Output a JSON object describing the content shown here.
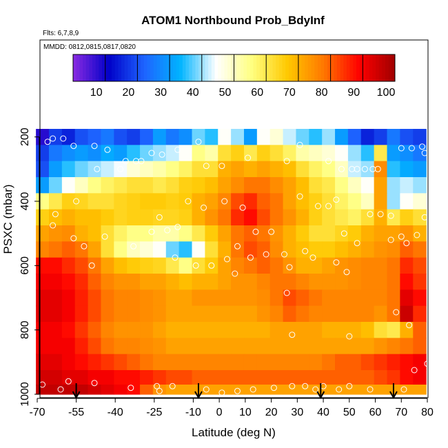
{
  "chart_data": {
    "type": "heatmap",
    "title": "ATOM1 Northbound Prob_BdyInf",
    "flights_note": "Flts: 6,7,8,9",
    "dates_note": "MMDD: 0812,0815,0817,0820",
    "xlabel": "Latitude (deg N)",
    "ylabel": "PSXC (mbar)",
    "x_range": [
      -70,
      80
    ],
    "y_range": [
      1000,
      100
    ],
    "y_reversed": true,
    "x_ticks": [
      -70,
      -55,
      -40,
      -25,
      -10,
      0,
      10,
      20,
      30,
      40,
      50,
      60,
      70,
      80
    ],
    "y_ticks": [
      200,
      400,
      600,
      800,
      1000
    ],
    "colorbar": {
      "range": [
        0,
        100
      ],
      "ticks": [
        10,
        20,
        30,
        40,
        50,
        60,
        70,
        80,
        90,
        100
      ],
      "colors": [
        "#8a2be2",
        "#0000c8",
        "#1e64ff",
        "#00b4ff",
        "#ffffff",
        "#ffff80",
        "#ffc800",
        "#ff7800",
        "#ff0000",
        "#a00000"
      ]
    },
    "pressure_levels": [
      200,
      250,
      300,
      350,
      400,
      450,
      500,
      550,
      600,
      650,
      700,
      750,
      800,
      850,
      900,
      950,
      990
    ],
    "lat_bins": [
      -68,
      -63,
      -58,
      -53,
      -48,
      -43,
      -38,
      -33,
      -28,
      -23,
      -18,
      -13,
      -8,
      -3,
      2,
      7,
      12,
      17,
      22,
      27,
      32,
      37,
      42,
      47,
      52,
      57,
      62,
      67,
      72,
      77
    ],
    "values": [
      [
        8,
        18,
        15,
        20,
        22,
        25,
        20,
        18,
        22,
        30,
        25,
        28,
        38,
        35,
        45,
        40,
        30,
        45,
        48,
        42,
        38,
        35,
        40,
        30,
        22,
        15,
        18,
        25,
        20,
        18
      ],
      [
        18,
        25,
        28,
        30,
        28,
        32,
        30,
        35,
        38,
        40,
        42,
        45,
        55,
        52,
        62,
        65,
        60,
        65,
        62,
        58,
        52,
        50,
        48,
        45,
        40,
        35,
        60,
        30,
        28,
        25
      ],
      [
        20,
        30,
        35,
        38,
        40,
        42,
        44,
        48,
        50,
        52,
        55,
        58,
        62,
        62,
        70,
        72,
        70,
        72,
        70,
        68,
        62,
        58,
        55,
        50,
        42,
        40,
        75,
        35,
        32,
        30
      ],
      [
        30,
        38,
        45,
        50,
        55,
        58,
        60,
        62,
        62,
        60,
        62,
        65,
        66,
        68,
        72,
        75,
        78,
        78,
        75,
        72,
        68,
        62,
        60,
        55,
        50,
        45,
        72,
        40,
        42,
        40
      ],
      [
        55,
        60,
        65,
        64,
        62,
        62,
        64,
        65,
        66,
        66,
        65,
        66,
        70,
        72,
        76,
        82,
        85,
        80,
        78,
        72,
        68,
        65,
        62,
        58,
        55,
        50,
        72,
        40,
        45,
        48
      ],
      [
        65,
        68,
        70,
        68,
        68,
        66,
        64,
        65,
        65,
        64,
        64,
        65,
        70,
        74,
        78,
        85,
        88,
        82,
        78,
        74,
        70,
        65,
        62,
        60,
        58,
        62,
        70,
        60,
        65,
        62
      ],
      [
        72,
        74,
        75,
        70,
        68,
        62,
        58,
        55,
        55,
        52,
        52,
        55,
        60,
        66,
        72,
        78,
        80,
        78,
        74,
        70,
        66,
        62,
        62,
        64,
        66,
        70,
        72,
        72,
        74,
        70
      ],
      [
        76,
        78,
        80,
        78,
        72,
        62,
        55,
        50,
        48,
        45,
        38,
        35,
        45,
        62,
        70,
        78,
        82,
        80,
        75,
        70,
        68,
        66,
        66,
        68,
        70,
        72,
        74,
        75,
        80,
        78
      ],
      [
        88,
        88,
        85,
        82,
        78,
        72,
        68,
        66,
        65,
        64,
        60,
        55,
        62,
        66,
        72,
        76,
        78,
        80,
        78,
        74,
        70,
        70,
        72,
        74,
        75,
        76,
        76,
        78,
        85,
        82
      ],
      [
        90,
        90,
        88,
        85,
        80,
        76,
        74,
        74,
        72,
        72,
        70,
        68,
        70,
        70,
        72,
        74,
        74,
        76,
        78,
        78,
        76,
        74,
        74,
        74,
        75,
        76,
        76,
        78,
        88,
        84
      ],
      [
        92,
        92,
        90,
        86,
        82,
        78,
        76,
        76,
        75,
        74,
        72,
        72,
        74,
        74,
        74,
        74,
        74,
        75,
        78,
        82,
        80,
        78,
        76,
        76,
        76,
        76,
        76,
        78,
        92,
        88
      ],
      [
        92,
        92,
        90,
        86,
        82,
        78,
        76,
        76,
        75,
        74,
        72,
        72,
        72,
        72,
        72,
        72,
        72,
        74,
        76,
        80,
        78,
        76,
        76,
        76,
        76,
        76,
        74,
        78,
        95,
        85
      ],
      [
        90,
        90,
        88,
        84,
        80,
        76,
        74,
        74,
        74,
        72,
        70,
        70,
        70,
        70,
        70,
        70,
        70,
        70,
        72,
        72,
        72,
        72,
        70,
        70,
        70,
        68,
        62,
        60,
        70,
        80
      ],
      [
        90,
        90,
        90,
        86,
        82,
        78,
        76,
        76,
        75,
        74,
        72,
        72,
        72,
        72,
        72,
        72,
        72,
        72,
        72,
        72,
        72,
        72,
        72,
        72,
        72,
        72,
        74,
        76,
        78,
        80
      ],
      [
        92,
        92,
        90,
        88,
        86,
        84,
        82,
        80,
        78,
        76,
        76,
        76,
        76,
        76,
        76,
        76,
        76,
        76,
        76,
        76,
        76,
        76,
        78,
        80,
        80,
        82,
        84,
        86,
        88,
        90
      ],
      [
        94,
        94,
        92,
        92,
        90,
        90,
        88,
        88,
        86,
        84,
        82,
        82,
        80,
        80,
        80,
        80,
        80,
        80,
        80,
        80,
        80,
        80,
        80,
        80,
        80,
        80,
        82,
        84,
        88,
        90
      ],
      [
        96,
        96,
        96,
        96,
        94,
        92,
        90,
        88,
        80,
        74,
        72,
        72,
        72,
        72,
        72,
        72,
        72,
        72,
        72,
        72,
        72,
        72,
        72,
        72,
        72,
        72,
        72,
        72,
        72,
        72
      ]
    ],
    "markers_lat": [
      -55,
      -8,
      39,
      67
    ],
    "observations": [
      {
        "lat": -66,
        "p": 215
      },
      {
        "lat": -64,
        "p": 205
      },
      {
        "lat": -60,
        "p": 205
      },
      {
        "lat": -56,
        "p": 228
      },
      {
        "lat": -48,
        "p": 228
      },
      {
        "lat": -43,
        "p": 240
      },
      {
        "lat": -36,
        "p": 275
      },
      {
        "lat": -32,
        "p": 275
      },
      {
        "lat": -30,
        "p": 275
      },
      {
        "lat": -26,
        "p": 250
      },
      {
        "lat": -22,
        "p": 255
      },
      {
        "lat": -16,
        "p": 240
      },
      {
        "lat": -8,
        "p": 215
      },
      {
        "lat": -5,
        "p": 290
      },
      {
        "lat": 1,
        "p": 290
      },
      {
        "lat": 11,
        "p": 265
      },
      {
        "lat": 26,
        "p": 275
      },
      {
        "lat": 31,
        "p": 225
      },
      {
        "lat": 42,
        "p": 275
      },
      {
        "lat": 47,
        "p": 300
      },
      {
        "lat": 51,
        "p": 300
      },
      {
        "lat": 53,
        "p": 300
      },
      {
        "lat": 56,
        "p": 300
      },
      {
        "lat": 59,
        "p": 300
      },
      {
        "lat": 61,
        "p": 300
      },
      {
        "lat": 70,
        "p": 235
      },
      {
        "lat": 74,
        "p": 235
      },
      {
        "lat": 78,
        "p": 230
      },
      {
        "lat": 79,
        "p": 250
      },
      {
        "lat": -47,
        "p": 300
      },
      {
        "lat": -38,
        "p": 300
      },
      {
        "lat": -55,
        "p": 400
      },
      {
        "lat": -64,
        "p": 475
      },
      {
        "lat": -63,
        "p": 440
      },
      {
        "lat": -56,
        "p": 515
      },
      {
        "lat": -44,
        "p": 510
      },
      {
        "lat": -52,
        "p": 540
      },
      {
        "lat": -49,
        "p": 600
      },
      {
        "lat": -23,
        "p": 450
      },
      {
        "lat": -20,
        "p": 490
      },
      {
        "lat": -16,
        "p": 480
      },
      {
        "lat": -12,
        "p": 400
      },
      {
        "lat": -6,
        "p": 420
      },
      {
        "lat": 2,
        "p": 400
      },
      {
        "lat": 9,
        "p": 420
      },
      {
        "lat": 14,
        "p": 495
      },
      {
        "lat": 20,
        "p": 495
      },
      {
        "lat": 7,
        "p": 540
      },
      {
        "lat": 12,
        "p": 575
      },
      {
        "lat": 18,
        "p": 565
      },
      {
        "lat": 25,
        "p": 565
      },
      {
        "lat": 33,
        "p": 555
      },
      {
        "lat": 36,
        "p": 575
      },
      {
        "lat": 31,
        "p": 385
      },
      {
        "lat": 38,
        "p": 415
      },
      {
        "lat": 42,
        "p": 415
      },
      {
        "lat": 45,
        "p": 395
      },
      {
        "lat": 48,
        "p": 500
      },
      {
        "lat": 53,
        "p": 530
      },
      {
        "lat": 58,
        "p": 440
      },
      {
        "lat": 62,
        "p": 440
      },
      {
        "lat": 66,
        "p": 520
      },
      {
        "lat": 70,
        "p": 510
      },
      {
        "lat": 72,
        "p": 530
      },
      {
        "lat": 76,
        "p": 505
      },
      {
        "lat": 79,
        "p": 450
      },
      {
        "lat": 66,
        "p": 445
      },
      {
        "lat": -26,
        "p": 495
      },
      {
        "lat": -33,
        "p": 540
      },
      {
        "lat": -17,
        "p": 575
      },
      {
        "lat": -9,
        "p": 600
      },
      {
        "lat": -3,
        "p": 600
      },
      {
        "lat": 3,
        "p": 580
      },
      {
        "lat": 6,
        "p": 625
      },
      {
        "lat": 27,
        "p": 605
      },
      {
        "lat": 45,
        "p": 590
      },
      {
        "lat": 49,
        "p": 620
      },
      {
        "lat": 26,
        "p": 685
      },
      {
        "lat": 68,
        "p": 745
      },
      {
        "lat": 73,
        "p": 785
      },
      {
        "lat": 28,
        "p": 815
      },
      {
        "lat": 50,
        "p": 820
      },
      {
        "lat": 80,
        "p": 905
      },
      {
        "lat": 75,
        "p": 925
      },
      {
        "lat": -68,
        "p": 970
      },
      {
        "lat": -61,
        "p": 985
      },
      {
        "lat": -58,
        "p": 960
      },
      {
        "lat": -48,
        "p": 965
      },
      {
        "lat": -34,
        "p": 980
      },
      {
        "lat": -24,
        "p": 975
      },
      {
        "lat": -23,
        "p": 990
      },
      {
        "lat": -18,
        "p": 975
      },
      {
        "lat": -5,
        "p": 985
      },
      {
        "lat": 1,
        "p": 995
      },
      {
        "lat": 7,
        "p": 990
      },
      {
        "lat": 13,
        "p": 985
      },
      {
        "lat": 21,
        "p": 980
      },
      {
        "lat": 28,
        "p": 975
      },
      {
        "lat": 33,
        "p": 975
      },
      {
        "lat": 37,
        "p": 985
      },
      {
        "lat": 40,
        "p": 975
      },
      {
        "lat": 46,
        "p": 985
      },
      {
        "lat": 50,
        "p": 975
      },
      {
        "lat": 58,
        "p": 985
      },
      {
        "lat": 71,
        "p": 985
      }
    ]
  }
}
